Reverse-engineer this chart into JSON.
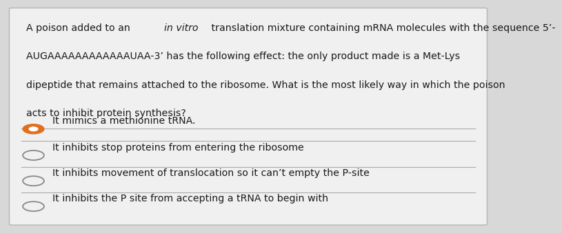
{
  "background_color": "#d8d8d8",
  "card_color": "#f0f0f0",
  "border_color": "#bbbbbb",
  "question_lines": [
    [
      "normal",
      "A poison added to an "
    ],
    [
      "italic",
      "in vitro"
    ],
    [
      "normal",
      " translation mixture containing mRNA molecules with the sequence 5’-"
    ]
  ],
  "question_line2": "AUGAAAAAAAAAAAAUAA-3’ has the following effect: the only product made is a Met-Lys",
  "question_line3": "dipeptide that remains attached to the ribosome. What is the most likely way in which the poison",
  "question_line4": "acts to inhibit protein synthesis?",
  "options": [
    {
      "text": "It mimics a methionine tRNA.",
      "selected": true
    },
    {
      "text": "It inhibits stop proteins from entering the ribosome",
      "selected": false
    },
    {
      "text": "It inhibits movement of translocation so it can’t empty the P-site",
      "selected": false
    },
    {
      "text": "It inhibits the P site from accepting a tRNA to begin with",
      "selected": false
    }
  ],
  "separator_color": "#aaaaaa",
  "text_color": "#1a1a1a",
  "selected_fill_color": "#e07020",
  "selected_ring_color": "#c06010",
  "unselected_color": "#888888",
  "font_size_question": 10.2,
  "font_size_options": 10.2
}
